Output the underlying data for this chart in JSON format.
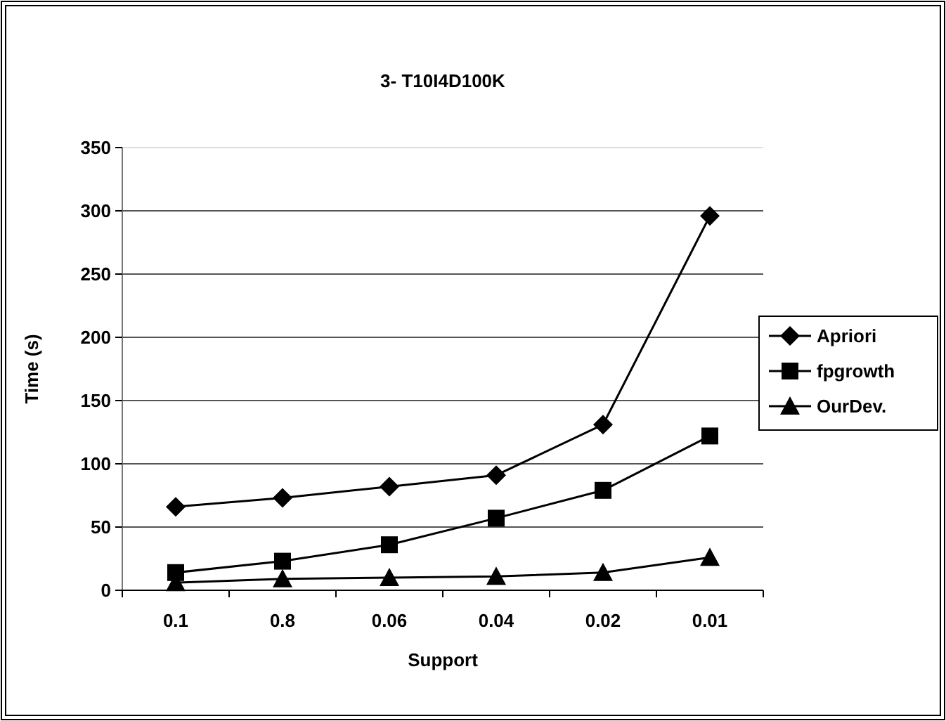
{
  "chart_data": {
    "type": "line",
    "title": "3- T10I4D100K",
    "xlabel": "Support",
    "ylabel": "Time (s)",
    "categories": [
      "0.1",
      "0.8",
      "0.06",
      "0.04",
      "0.02",
      "0.01"
    ],
    "series": [
      {
        "name": "Apriori",
        "color": "#000000",
        "marker": "diamond",
        "values": [
          66,
          73,
          82,
          91,
          131,
          296
        ]
      },
      {
        "name": "fpgrowth",
        "color": "#000000",
        "marker": "square",
        "values": [
          14,
          23,
          36,
          57,
          79,
          122
        ]
      },
      {
        "name": "OurDev.",
        "color": "#000000",
        "marker": "triangle",
        "values": [
          6,
          9,
          10,
          11,
          14,
          26
        ]
      }
    ],
    "ylim": [
      0,
      350
    ],
    "yticks": [
      0,
      50,
      100,
      150,
      200,
      250,
      300,
      350
    ],
    "grid": "y",
    "legend": "right",
    "line_style": "solid"
  }
}
